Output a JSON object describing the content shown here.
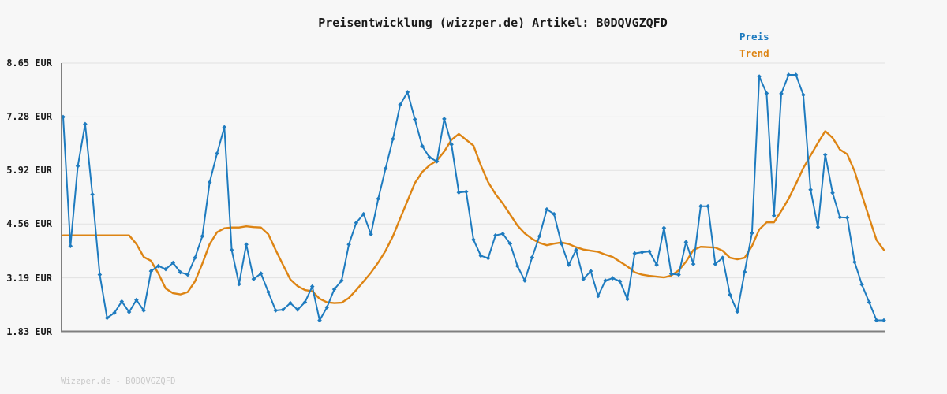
{
  "page": {
    "title": "Preisentwicklung (wizzper.de) Artikel: B0DQVGZQFD",
    "footer": "Wizzper.de - B0DQVGZQFD"
  },
  "colors": {
    "background": "#f7f7f7",
    "grid": "#e2e2e2",
    "axis": "#7f7f7f",
    "price": "#1e7bbf",
    "trend": "#dd8413",
    "text": "#1a1a1a",
    "footer_text": "#c9c9c9"
  },
  "chart_data": {
    "type": "line",
    "title": "Preisentwicklung (wizzper.de) Artikel: B0DQVGZQFD",
    "xlabel": "",
    "ylabel": "",
    "y_unit": "EUR",
    "ylim": [
      1.83,
      8.65
    ],
    "x_labels_visible": false,
    "grid": true,
    "legend_position": "top-right",
    "y_ticks": [
      {
        "label": "8.65 EUR",
        "value": 8.65
      },
      {
        "label": "7.28 EUR",
        "value": 7.28
      },
      {
        "label": "5.92 EUR",
        "value": 5.92
      },
      {
        "label": "4.56 EUR",
        "value": 4.56
      },
      {
        "label": "3.19 EUR",
        "value": 3.19
      },
      {
        "label": "1.83 EUR",
        "value": 1.83
      }
    ],
    "legend": [
      {
        "label": "Preis",
        "color": "#1e7bbf"
      },
      {
        "label": "Trend",
        "color": "#dd8413"
      }
    ],
    "series": [
      {
        "name": "Preis",
        "color": "#1e7bbf",
        "marker": "diamond",
        "line_width": 2,
        "values": [
          7.28,
          4.0,
          6.03,
          7.1,
          5.31,
          3.27,
          2.17,
          2.3,
          2.59,
          2.32,
          2.63,
          2.36,
          3.36,
          3.49,
          3.41,
          3.57,
          3.33,
          3.27,
          3.7,
          4.25,
          5.62,
          6.35,
          7.02,
          3.9,
          3.03,
          4.04,
          3.16,
          3.3,
          2.83,
          2.36,
          2.38,
          2.55,
          2.38,
          2.57,
          2.97,
          2.11,
          2.44,
          2.9,
          3.12,
          4.04,
          4.59,
          4.81,
          4.3,
          5.2,
          5.97,
          6.72,
          7.59,
          7.91,
          7.22,
          6.54,
          6.25,
          6.15,
          7.23,
          6.58,
          5.36,
          5.38,
          4.16,
          3.75,
          3.69,
          4.27,
          4.31,
          4.06,
          3.49,
          3.12,
          3.71,
          4.25,
          4.93,
          4.81,
          4.06,
          3.52,
          3.9,
          3.16,
          3.36,
          2.73,
          3.12,
          3.18,
          3.1,
          2.65,
          3.81,
          3.84,
          3.86,
          3.52,
          4.46,
          3.29,
          3.27,
          4.1,
          3.54,
          5.01,
          5.01,
          3.54,
          3.7,
          2.76,
          2.33,
          3.34,
          4.33,
          8.31,
          7.88,
          4.77,
          7.87,
          8.35,
          8.35,
          7.84,
          5.43,
          4.48,
          6.32,
          5.35,
          4.73,
          4.72,
          3.59,
          3.02,
          2.57,
          2.11,
          2.11
        ]
      },
      {
        "name": "Trend",
        "color": "#dd8413",
        "marker": "none",
        "line_width": 2.4,
        "values": [
          4.27,
          4.27,
          4.27,
          4.27,
          4.27,
          4.27,
          4.27,
          4.27,
          4.27,
          4.27,
          4.05,
          3.72,
          3.62,
          3.3,
          2.92,
          2.8,
          2.77,
          2.83,
          3.1,
          3.55,
          4.05,
          4.35,
          4.45,
          4.47,
          4.47,
          4.5,
          4.48,
          4.47,
          4.3,
          3.9,
          3.52,
          3.15,
          2.98,
          2.88,
          2.85,
          2.66,
          2.57,
          2.55,
          2.56,
          2.68,
          2.88,
          3.1,
          3.32,
          3.58,
          3.88,
          4.25,
          4.7,
          5.15,
          5.6,
          5.88,
          6.05,
          6.17,
          6.4,
          6.7,
          6.85,
          6.7,
          6.55,
          6.05,
          5.62,
          5.32,
          5.08,
          4.8,
          4.52,
          4.32,
          4.18,
          4.08,
          4.02,
          4.06,
          4.09,
          4.05,
          3.97,
          3.91,
          3.88,
          3.85,
          3.78,
          3.72,
          3.6,
          3.48,
          3.33,
          3.27,
          3.24,
          3.22,
          3.2,
          3.25,
          3.38,
          3.6,
          3.9,
          3.98,
          3.97,
          3.96,
          3.88,
          3.7,
          3.66,
          3.7,
          4.0,
          4.42,
          4.6,
          4.6,
          4.89,
          5.2,
          5.58,
          5.98,
          6.3,
          6.62,
          6.92,
          6.75,
          6.45,
          6.33,
          5.9,
          5.3,
          4.72,
          4.15,
          3.9
        ]
      }
    ]
  }
}
